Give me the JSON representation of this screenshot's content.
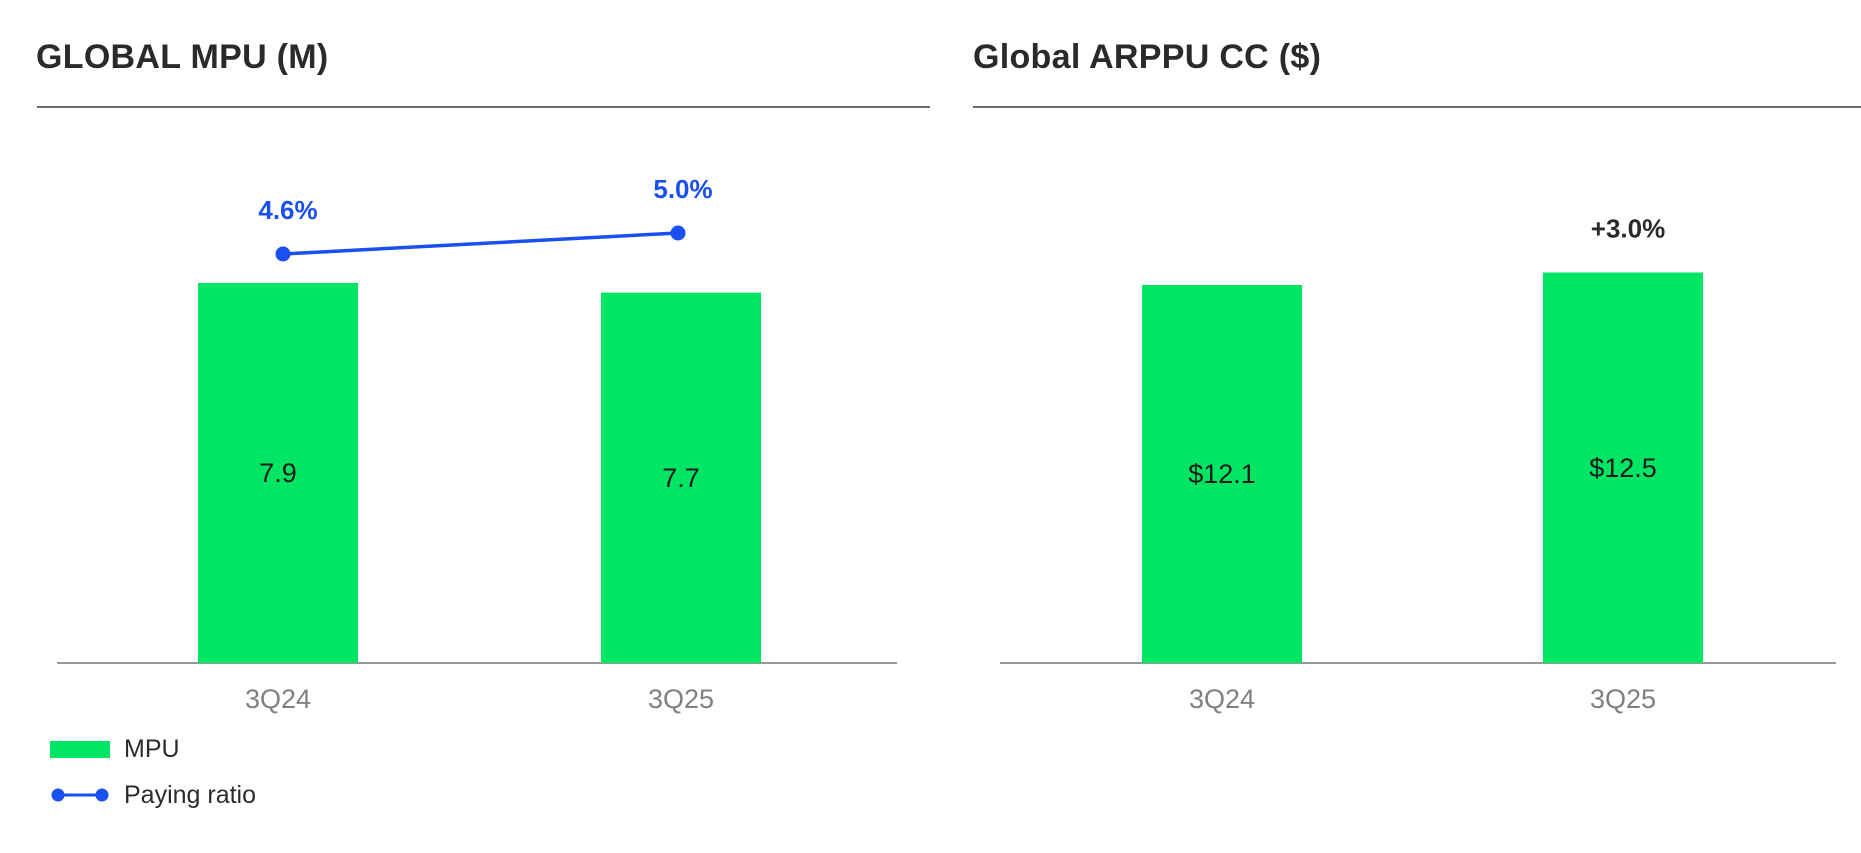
{
  "colors": {
    "bar": "#00E564",
    "line": "#1A4FF0",
    "axis": "#777777",
    "tick_text": "#808080",
    "value_text": "#1a1a1a",
    "growth_text": "#2a2a2a"
  },
  "chart_data": [
    {
      "type": "bar",
      "title": "GLOBAL MPU (M)",
      "categories": [
        "3Q24",
        "3Q25"
      ],
      "series": [
        {
          "name": "MPU",
          "type": "bar",
          "values": [
            7.9,
            7.7
          ],
          "labels": [
            "7.9",
            "7.7"
          ]
        },
        {
          "name": "Paying ratio",
          "type": "line",
          "values": [
            4.6,
            5.0
          ],
          "labels": [
            "4.6%",
            "5.0%"
          ]
        }
      ],
      "legend": {
        "placement": "bottom-left",
        "entries": [
          "MPU",
          "Paying ratio"
        ]
      },
      "grid": false
    },
    {
      "type": "bar",
      "title": "Global ARPPU CC ($)",
      "categories": [
        "3Q24",
        "3Q25"
      ],
      "series": [
        {
          "type": "bar",
          "values": [
            12.1,
            12.5
          ],
          "labels": [
            "$12.1",
            "$12.5"
          ]
        }
      ],
      "annotations": [
        {
          "category": "3Q25",
          "text": "+3.0%"
        }
      ],
      "grid": false
    }
  ]
}
